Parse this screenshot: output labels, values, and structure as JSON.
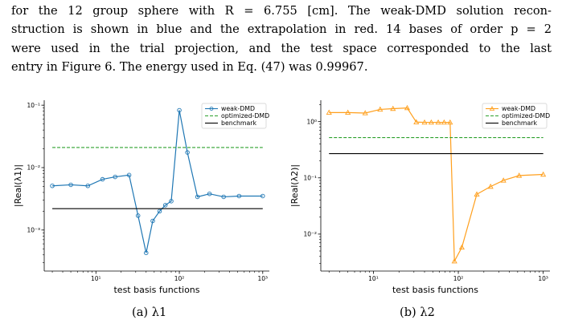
{
  "paragraph": [
    "for the 12 group sphere with R = 6.755 [cm]. The weak-DMD solution recon-",
    "struction is shown in blue and the extrapolation in red. 14 bases of order p = 2",
    "were used in the trial projection, and the test space corresponded to the last",
    "entry in Figure 6. The energy used in Eq. (47) was 0.99967."
  ],
  "chart_data": [
    {
      "type": "line",
      "caption": "(a) λ1",
      "xlabel": "test basis functions",
      "ylabel": "|Real(λ1)|",
      "xscale": "log",
      "yscale": "log",
      "xlim": [
        2.4,
        1200
      ],
      "ylim": [
        0.00022,
        0.12
      ],
      "xticks": [
        10,
        100,
        1000
      ],
      "xtick_labels": [
        "10¹",
        "10²",
        "10³"
      ],
      "yticks": [
        0.001,
        0.01,
        0.1
      ],
      "ytick_labels": [
        "10⁻³",
        "10⁻²",
        "10⁻¹"
      ],
      "legend_position": "top-right",
      "series": [
        {
          "name": "weak-DMD",
          "color": "#1f77b4",
          "marker": "circle",
          "dash": "solid",
          "x": [
            3,
            5,
            8,
            12,
            17,
            25,
            32,
            40,
            48,
            58,
            68,
            80,
            100,
            125,
            165,
            230,
            340,
            520,
            1000
          ],
          "y": [
            0.0051,
            0.0053,
            0.0051,
            0.0065,
            0.0071,
            0.0076,
            0.0017,
            0.00043,
            0.0014,
            0.002,
            0.0025,
            0.0029,
            0.083,
            0.0175,
            0.0034,
            0.0038,
            0.0034,
            0.0035,
            0.0035
          ]
        },
        {
          "name": "optimized-DMD",
          "color": "#2ca02c",
          "dash": "dashed",
          "x": [
            3,
            1000
          ],
          "y": [
            0.021,
            0.021
          ]
        },
        {
          "name": "benchmark",
          "color": "#000000",
          "dash": "solid",
          "x": [
            3,
            1000
          ],
          "y": [
            0.0022,
            0.0022
          ]
        }
      ]
    },
    {
      "type": "line",
      "caption": "(b) λ2",
      "xlabel": "test basis functions",
      "ylabel": "|Real(λ2)|",
      "xscale": "log",
      "yscale": "log",
      "xlim": [
        2.4,
        1200
      ],
      "ylim": [
        0.0022,
        2.4
      ],
      "xticks": [
        10,
        100,
        1000
      ],
      "xtick_labels": [
        "10¹",
        "10²",
        "10³"
      ],
      "yticks": [
        0.01,
        0.1,
        1
      ],
      "ytick_labels": [
        "10⁻²",
        "10⁻¹",
        "10⁰"
      ],
      "legend_position": "top-right",
      "series": [
        {
          "name": "weak-DMD",
          "color": "#ff9f1c",
          "marker": "triangle",
          "dash": "solid",
          "x": [
            3,
            5,
            8,
            12,
            17,
            25,
            32,
            40,
            48,
            58,
            68,
            80,
            90,
            110,
            165,
            240,
            340,
            520,
            1000
          ],
          "y": [
            1.45,
            1.45,
            1.42,
            1.65,
            1.7,
            1.75,
            0.98,
            0.97,
            0.97,
            0.97,
            0.97,
            0.97,
            0.0033,
            0.0058,
            0.051,
            0.07,
            0.09,
            0.11,
            0.115
          ]
        },
        {
          "name": "optimized-DMD",
          "color": "#2ca02c",
          "dash": "dashed",
          "x": [
            3,
            1000
          ],
          "y": [
            0.52,
            0.52
          ]
        },
        {
          "name": "benchmark",
          "color": "#000000",
          "dash": "solid",
          "x": [
            3,
            1000
          ],
          "y": [
            0.27,
            0.27
          ]
        }
      ]
    }
  ]
}
